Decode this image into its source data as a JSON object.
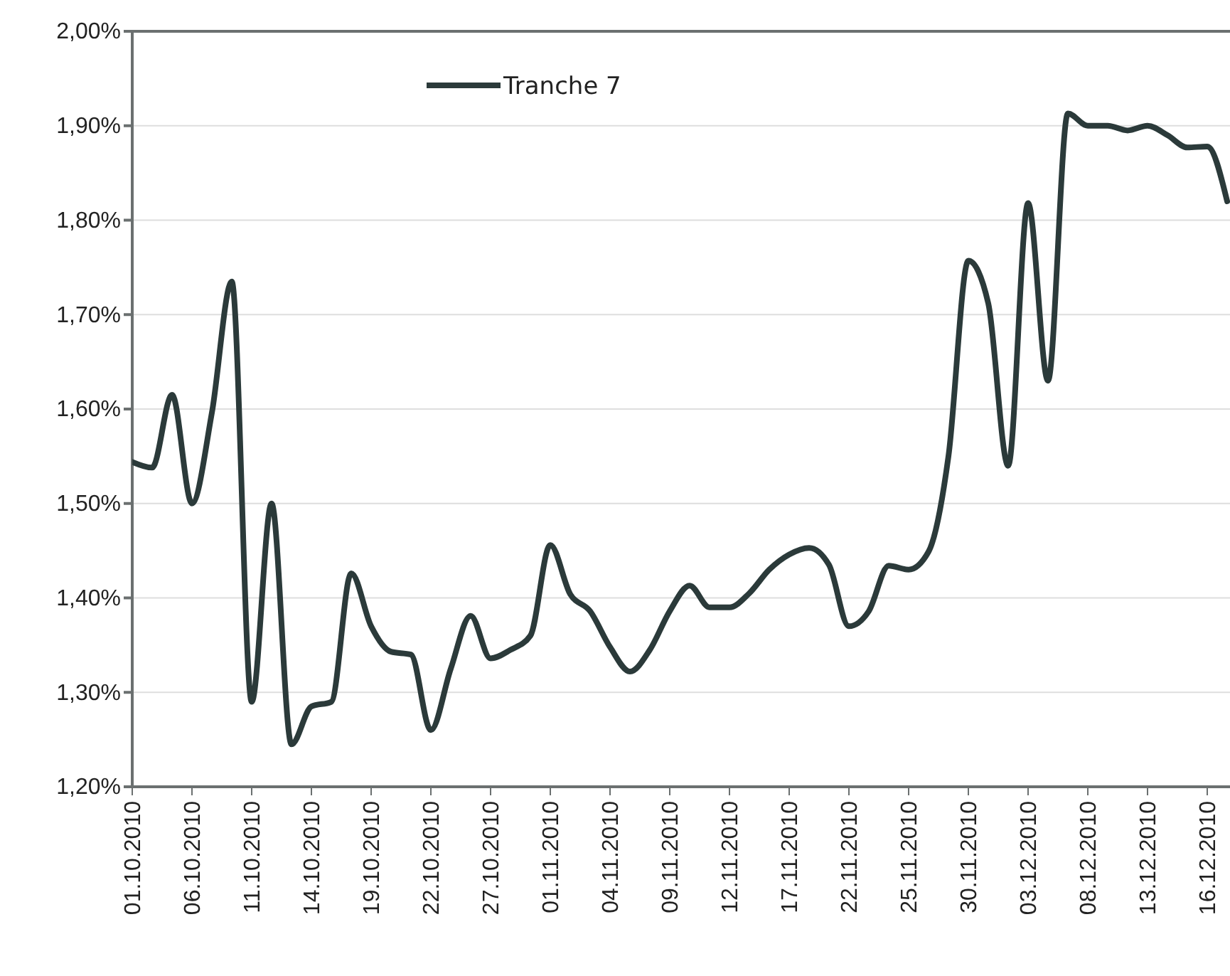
{
  "chart_data": {
    "type": "line",
    "categories": [
      "01.10.2010",
      null,
      null,
      "06.10.2010",
      null,
      null,
      "11.10.2010",
      null,
      null,
      "14.10.2010",
      null,
      null,
      "19.10.2010",
      null,
      null,
      "22.10.2010",
      null,
      null,
      "27.10.2010",
      null,
      null,
      "01.11.2010",
      null,
      null,
      "04.11.2010",
      null,
      null,
      "09.11.2010",
      null,
      null,
      "12.11.2010",
      null,
      null,
      "17.11.2010",
      null,
      null,
      "22.11.2010",
      null,
      null,
      "25.11.2010",
      null,
      null,
      "30.11.2010",
      null,
      null,
      "03.12.2010",
      null,
      null,
      "08.12.2010",
      null,
      null,
      "13.12.2010",
      null,
      null,
      "16.12.2010",
      null
    ],
    "series": [
      {
        "name": "Tranche 7",
        "color": "#2b3a3a",
        "values": [
          1.544,
          1.538,
          1.615,
          1.5,
          1.596,
          1.735,
          1.29,
          1.5,
          1.245,
          1.285,
          1.29,
          1.426,
          1.37,
          1.343,
          1.34,
          1.26,
          1.325,
          1.381,
          1.336,
          1.345,
          1.36,
          1.456,
          1.404,
          1.386,
          1.348,
          1.322,
          1.345,
          1.386,
          1.413,
          1.39,
          1.39,
          1.405,
          1.43,
          1.446,
          1.453,
          1.435,
          1.37,
          1.386,
          1.434,
          1.43,
          1.449,
          1.55,
          1.757,
          1.712,
          1.54,
          1.818,
          1.63,
          1.913,
          1.9,
          1.9,
          1.895,
          1.9,
          1.89,
          1.877,
          1.878,
          1.82
        ]
      }
    ],
    "ylim": [
      1.2,
      2.0
    ],
    "yticks": [
      {
        "value": 1.2,
        "label": "1,20%"
      },
      {
        "value": 1.3,
        "label": "1,30%"
      },
      {
        "value": 1.4,
        "label": "1,40%"
      },
      {
        "value": 1.5,
        "label": "1,50%"
      },
      {
        "value": 1.6,
        "label": "1,60%"
      },
      {
        "value": 1.7,
        "label": "1,70%"
      },
      {
        "value": 1.8,
        "label": "1,80%"
      },
      {
        "value": 1.9,
        "label": "1,90%"
      },
      {
        "value": 2.0,
        "label": "2,00%"
      }
    ],
    "grid": "y",
    "legend": "top",
    "marker": "none",
    "line_style": "solid"
  }
}
